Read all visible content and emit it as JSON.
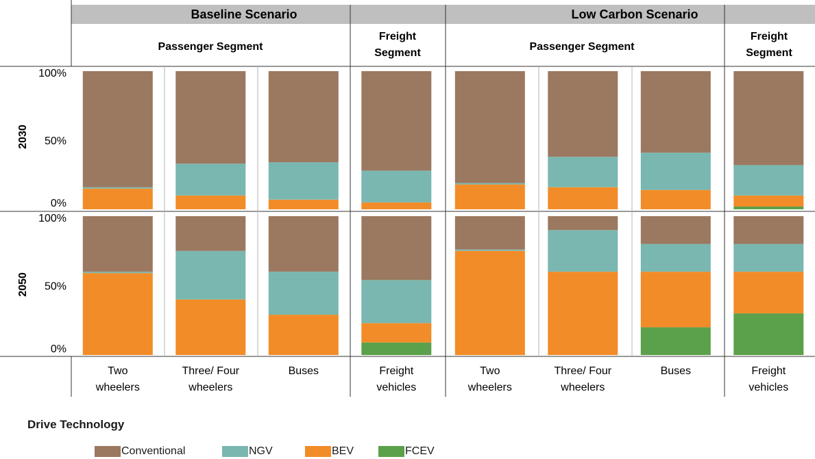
{
  "header": {
    "scenarios": [
      "Baseline Scenario",
      "Low Carbon Scenario"
    ],
    "passenger_segment": "Passenger Segment",
    "freight_segment": [
      "Freight",
      "Segment"
    ]
  },
  "legend": {
    "title": "Drive Technology",
    "items": [
      {
        "label": "Conventional",
        "color": "#9b7860"
      },
      {
        "label": "NGV",
        "color": "#79b7b0"
      },
      {
        "label": "BEV",
        "color": "#f28c28"
      },
      {
        "label": "FCEV",
        "color": "#5ba04a"
      }
    ]
  },
  "chart_data": {
    "type": "bar",
    "stacked": true,
    "rows": [
      "2030",
      "2050"
    ],
    "y_ticks": [
      "100%",
      "50%",
      "0%"
    ],
    "ylim": [
      0,
      100
    ],
    "categories": [
      [
        "Two",
        "wheelers"
      ],
      [
        "Three/ Four",
        "wheelers"
      ],
      [
        "Buses"
      ],
      [
        "Freight",
        "vehicles"
      ],
      [
        "Two",
        "wheelers"
      ],
      [
        "Three/ Four",
        "wheelers"
      ],
      [
        "Buses"
      ],
      [
        "Freight",
        "vehicles"
      ]
    ],
    "series_order": [
      "FCEV",
      "BEV",
      "NGV",
      "Conventional"
    ],
    "values": {
      "2030": {
        "FCEV": [
          0,
          0,
          0,
          0,
          0,
          0,
          0,
          2
        ],
        "BEV": [
          15,
          10,
          7,
          5,
          18,
          16,
          14,
          8
        ],
        "NGV": [
          1,
          23,
          27,
          23,
          1,
          22,
          27,
          22
        ],
        "Conventional": [
          84,
          67,
          66,
          72,
          81,
          62,
          59,
          68
        ]
      },
      "2050": {
        "FCEV": [
          0,
          0,
          0,
          9,
          0,
          0,
          20,
          30
        ],
        "BEV": [
          59,
          40,
          29,
          14,
          75,
          60,
          40,
          30
        ],
        "NGV": [
          1,
          35,
          31,
          31,
          1,
          30,
          20,
          20
        ],
        "Conventional": [
          40,
          25,
          40,
          46,
          24,
          10,
          20,
          20
        ]
      }
    }
  }
}
